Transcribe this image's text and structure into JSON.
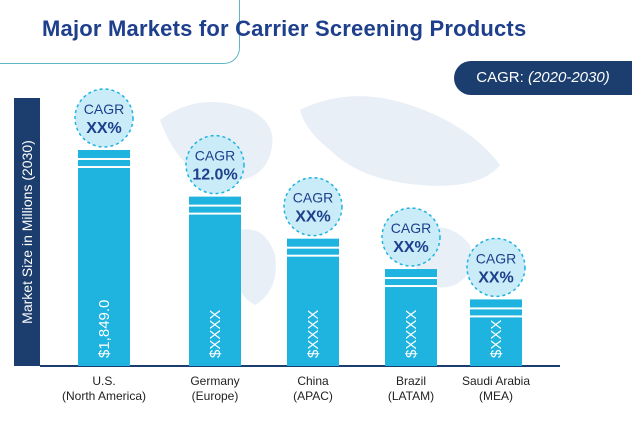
{
  "title": "Major Markets for Carrier Screening Products",
  "cagr_badge": {
    "label": "CAGR:",
    "period": "(2020-2030)"
  },
  "colors": {
    "bar": "#1fb3e0",
    "bubble_fill": "#c9ecf8",
    "bubble_stroke": "#1fb3e0",
    "bubble_text": "#1d3f8c",
    "axis_dark": "#1b3e6e",
    "map": "#e6eef5"
  },
  "chart_data": {
    "type": "bar",
    "ylabel": "Market Size in Millions (2030)",
    "categories": [
      {
        "line1": "U.S.",
        "line2": "(North America)"
      },
      {
        "line1": "Germany",
        "line2": "(Europe)"
      },
      {
        "line1": "China",
        "line2": "(APAC)"
      },
      {
        "line1": "Brazil",
        "line2": "(LATAM)"
      },
      {
        "line1": "Saudi Arabia",
        "line2": "(MEA)"
      }
    ],
    "values": [
      1849.0,
      1450,
      1090,
      830,
      570
    ],
    "ylim": [
      0,
      1849.0
    ],
    "value_labels": [
      "$1,849.0",
      "$XXXX",
      "$XXXX",
      "$XXXX",
      "$XXX"
    ],
    "cagr_title": "CAGR",
    "cagr_values": [
      "XX%",
      "12.0%",
      "XX%",
      "XX%",
      "XX%"
    ],
    "grid": false
  }
}
